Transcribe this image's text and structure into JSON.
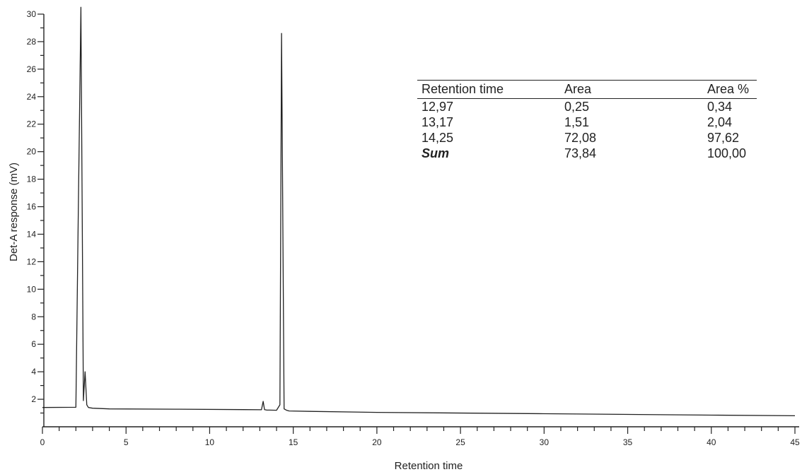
{
  "chart_data": {
    "type": "line",
    "title": "",
    "xlabel": "Retention time",
    "ylabel": "Det-A response (mV)",
    "xlim": [
      0,
      45
    ],
    "ylim": [
      0,
      30
    ],
    "x_ticks": [
      0,
      5,
      10,
      15,
      20,
      25,
      30,
      35,
      40,
      45
    ],
    "y_ticks": [
      2,
      4,
      6,
      8,
      10,
      12,
      14,
      16,
      18,
      20,
      22,
      24,
      26,
      28,
      30
    ],
    "grid": false,
    "series": [
      {
        "x": [
          0,
          2.0,
          2.15,
          2.3,
          2.45,
          2.55,
          2.65,
          2.75,
          3.0,
          4.0,
          8,
          12,
          13.1,
          13.2,
          13.28,
          13.4,
          14.0,
          14.2,
          14.3,
          14.45,
          14.6,
          14.75,
          16,
          20,
          30,
          40,
          45
        ],
        "y": [
          1.4,
          1.42,
          16,
          30.5,
          1.9,
          4.0,
          1.6,
          1.4,
          1.35,
          1.3,
          1.28,
          1.25,
          1.24,
          1.85,
          1.25,
          1.22,
          1.2,
          1.6,
          28.6,
          1.3,
          1.2,
          1.15,
          1.12,
          1.05,
          0.95,
          0.85,
          0.8
        ]
      }
    ]
  },
  "results_table": {
    "headers": [
      "Retention time",
      "Area",
      "Area %"
    ],
    "rows": [
      [
        "12,97",
        "0,25",
        "0,34"
      ],
      [
        "13,17",
        "1,51",
        "2,04"
      ],
      [
        "14,25",
        "72,08",
        "97,62"
      ]
    ],
    "sum_row": [
      "Sum",
      "73,84",
      "100,00"
    ]
  }
}
